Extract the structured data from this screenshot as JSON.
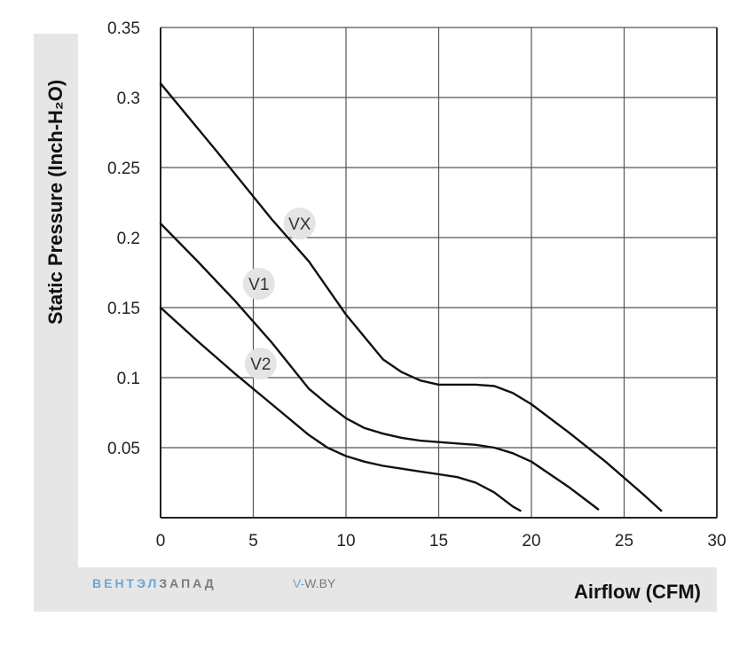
{
  "chart_data": {
    "type": "line",
    "xlabel": "Airflow (CFM)",
    "ylabel": "Static Pressure (Inch-H₂O)",
    "xlim": [
      0,
      30
    ],
    "ylim": [
      0,
      0.35
    ],
    "x_ticks": [
      "0",
      "5",
      "10",
      "15",
      "20",
      "25",
      "30"
    ],
    "y_ticks": [
      "0.05",
      "0.1",
      "0.15",
      "0.2",
      "0.25",
      "0.3",
      "0.35"
    ],
    "grid": true,
    "series": [
      {
        "name": "VX",
        "points": [
          [
            0,
            0.31
          ],
          [
            3,
            0.262
          ],
          [
            6,
            0.213
          ],
          [
            8,
            0.183
          ],
          [
            10,
            0.145
          ],
          [
            12,
            0.113
          ],
          [
            13,
            0.104
          ],
          [
            14,
            0.098
          ],
          [
            15,
            0.095
          ],
          [
            16,
            0.095
          ],
          [
            17,
            0.095
          ],
          [
            18,
            0.094
          ],
          [
            19,
            0.089
          ],
          [
            20,
            0.081
          ],
          [
            22,
            0.061
          ],
          [
            24,
            0.04
          ],
          [
            26,
            0.017
          ],
          [
            27,
            0.005
          ]
        ]
      },
      {
        "name": "V1",
        "points": [
          [
            0,
            0.21
          ],
          [
            2,
            0.183
          ],
          [
            4,
            0.155
          ],
          [
            6,
            0.125
          ],
          [
            8,
            0.092
          ],
          [
            9,
            0.081
          ],
          [
            10,
            0.071
          ],
          [
            11,
            0.064
          ],
          [
            12,
            0.06
          ],
          [
            13,
            0.057
          ],
          [
            14,
            0.055
          ],
          [
            15,
            0.054
          ],
          [
            16,
            0.053
          ],
          [
            17,
            0.052
          ],
          [
            18,
            0.05
          ],
          [
            19,
            0.046
          ],
          [
            20,
            0.04
          ],
          [
            21,
            0.031
          ],
          [
            22,
            0.022
          ],
          [
            23,
            0.012
          ],
          [
            23.6,
            0.006
          ]
        ]
      },
      {
        "name": "V2",
        "points": [
          [
            0,
            0.15
          ],
          [
            2,
            0.126
          ],
          [
            4,
            0.103
          ],
          [
            6,
            0.081
          ],
          [
            8,
            0.059
          ],
          [
            9,
            0.05
          ],
          [
            10,
            0.044
          ],
          [
            11,
            0.04
          ],
          [
            12,
            0.037
          ],
          [
            13,
            0.035
          ],
          [
            14,
            0.033
          ],
          [
            15,
            0.031
          ],
          [
            16,
            0.029
          ],
          [
            17,
            0.025
          ],
          [
            18,
            0.018
          ],
          [
            19,
            0.008
          ],
          [
            19.4,
            0.005
          ]
        ]
      }
    ],
    "annotations": [
      {
        "text": "VX",
        "x": 7.5,
        "y": 0.21
      },
      {
        "text": "V1",
        "x": 5.3,
        "y": 0.167
      },
      {
        "text": "V2",
        "x": 5.4,
        "y": 0.11
      }
    ]
  },
  "watermark": {
    "brand_part1": "ВЕНТЭЛ",
    "brand_part2": "ЗАПАД",
    "site_prefix": "V-",
    "site_rest": "W.BY"
  },
  "colors": {
    "curve": "#111111",
    "grid": "#555555",
    "frame": "#e6e6e6",
    "annotation_bg": "#e4e4e4"
  }
}
